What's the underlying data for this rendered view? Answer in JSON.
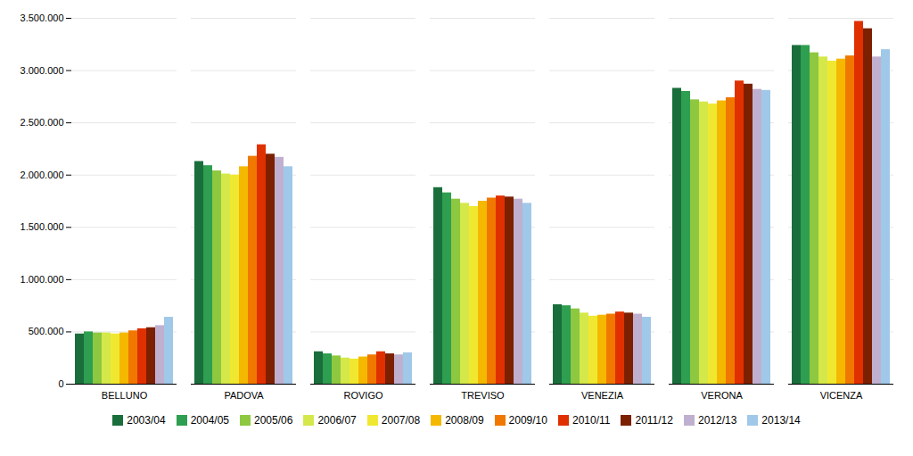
{
  "chart_data": {
    "type": "bar",
    "categories": [
      "BELLUNO",
      "PADOVA",
      "ROVIGO",
      "TREVISO",
      "VENEZIA",
      "VERONA",
      "VICENZA"
    ],
    "series": [
      {
        "name": "2003/04",
        "color": "#1a6e3c",
        "values": [
          480000,
          2130000,
          310000,
          1880000,
          760000,
          2830000,
          3240000
        ]
      },
      {
        "name": "2004/05",
        "color": "#2e9e50",
        "values": [
          500000,
          2090000,
          290000,
          1830000,
          750000,
          2800000,
          3240000
        ]
      },
      {
        "name": "2005/06",
        "color": "#8dc840",
        "values": [
          490000,
          2040000,
          270000,
          1770000,
          720000,
          2720000,
          3170000
        ]
      },
      {
        "name": "2006/07",
        "color": "#d4e84a",
        "values": [
          490000,
          2010000,
          250000,
          1730000,
          680000,
          2700000,
          3130000
        ]
      },
      {
        "name": "2007/08",
        "color": "#f0e830",
        "values": [
          480000,
          2000000,
          240000,
          1700000,
          650000,
          2680000,
          3090000
        ]
      },
      {
        "name": "2008/09",
        "color": "#f5b800",
        "values": [
          490000,
          2080000,
          260000,
          1750000,
          660000,
          2710000,
          3110000
        ]
      },
      {
        "name": "2009/10",
        "color": "#f07800",
        "values": [
          510000,
          2180000,
          280000,
          1780000,
          670000,
          2740000,
          3140000
        ]
      },
      {
        "name": "2010/11",
        "color": "#e03000",
        "values": [
          530000,
          2290000,
          310000,
          1800000,
          690000,
          2900000,
          3470000
        ]
      },
      {
        "name": "2011/12",
        "color": "#7b2000",
        "values": [
          540000,
          2200000,
          290000,
          1790000,
          680000,
          2870000,
          3400000
        ]
      },
      {
        "name": "2012/13",
        "color": "#c0b0d0",
        "values": [
          560000,
          2170000,
          280000,
          1770000,
          670000,
          2820000,
          3130000
        ]
      },
      {
        "name": "2013/14",
        "color": "#a0c8e8",
        "values": [
          640000,
          2080000,
          300000,
          1730000,
          640000,
          2810000,
          3200000
        ]
      }
    ],
    "ylim": [
      0,
      3500000
    ],
    "yticks": [
      0,
      {
        "value": 500000,
        "label": "500.000"
      },
      {
        "value": 1000000,
        "label": "1.000.000"
      },
      {
        "value": 1500000,
        "label": "1.500.000"
      },
      {
        "value": 2000000,
        "label": "2.000.000"
      },
      {
        "value": 2500000,
        "label": "2.500.000"
      },
      {
        "value": 3000000,
        "label": "3.000.000"
      },
      {
        "value": 3500000,
        "label": "3.500.000"
      }
    ],
    "grid": true,
    "legend": "bottom"
  }
}
